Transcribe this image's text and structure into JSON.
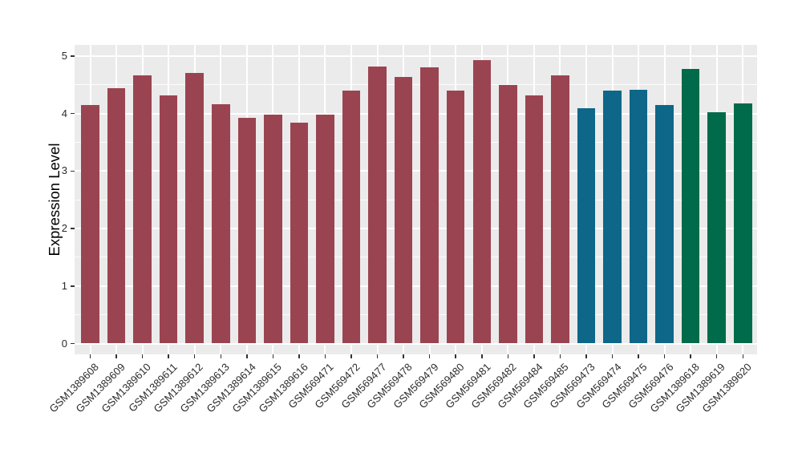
{
  "chart_data": {
    "type": "bar",
    "title": "",
    "xlabel": "",
    "ylabel": "Expression Level",
    "yticks": [
      0,
      1,
      2,
      3,
      4,
      5
    ],
    "ylim": [
      -0.19,
      5.19
    ],
    "grid": "white major and minor horizontal gridlines plus vertical gridlines at each category, on grey panel",
    "legend_position": "none",
    "panel_background": "#EBEBEB",
    "gridline_color": "#ffffff",
    "tick_color": "#333333",
    "palette": {
      "group1": "#9B4451",
      "group2": "#0E6789",
      "group3": "#006B4A"
    },
    "bars": [
      {
        "label": "GSM1389608",
        "value": 4.15,
        "group": "group1"
      },
      {
        "label": "GSM1389609",
        "value": 4.44,
        "group": "group1"
      },
      {
        "label": "GSM1389610",
        "value": 4.66,
        "group": "group1"
      },
      {
        "label": "GSM1389611",
        "value": 4.32,
        "group": "group1"
      },
      {
        "label": "GSM1389612",
        "value": 4.71,
        "group": "group1"
      },
      {
        "label": "GSM1389613",
        "value": 4.16,
        "group": "group1"
      },
      {
        "label": "GSM1389614",
        "value": 3.92,
        "group": "group1"
      },
      {
        "label": "GSM1389615",
        "value": 3.98,
        "group": "group1"
      },
      {
        "label": "GSM1389616",
        "value": 3.84,
        "group": "group1"
      },
      {
        "label": "GSM569471",
        "value": 3.98,
        "group": "group1"
      },
      {
        "label": "GSM569472",
        "value": 4.4,
        "group": "group1"
      },
      {
        "label": "GSM569477",
        "value": 4.82,
        "group": "group1"
      },
      {
        "label": "GSM569478",
        "value": 4.64,
        "group": "group1"
      },
      {
        "label": "GSM569479",
        "value": 4.8,
        "group": "group1"
      },
      {
        "label": "GSM569480",
        "value": 4.4,
        "group": "group1"
      },
      {
        "label": "GSM569481",
        "value": 4.93,
        "group": "group1"
      },
      {
        "label": "GSM569482",
        "value": 4.5,
        "group": "group1"
      },
      {
        "label": "GSM569484",
        "value": 4.32,
        "group": "group1"
      },
      {
        "label": "GSM569485",
        "value": 4.66,
        "group": "group1"
      },
      {
        "label": "GSM569473",
        "value": 4.09,
        "group": "group2"
      },
      {
        "label": "GSM569474",
        "value": 4.4,
        "group": "group2"
      },
      {
        "label": "GSM569475",
        "value": 4.42,
        "group": "group2"
      },
      {
        "label": "GSM569476",
        "value": 4.15,
        "group": "group2"
      },
      {
        "label": "GSM1389618",
        "value": 4.78,
        "group": "group3"
      },
      {
        "label": "GSM1389619",
        "value": 4.02,
        "group": "group3"
      },
      {
        "label": "GSM1389620",
        "value": 4.18,
        "group": "group3"
      }
    ]
  }
}
